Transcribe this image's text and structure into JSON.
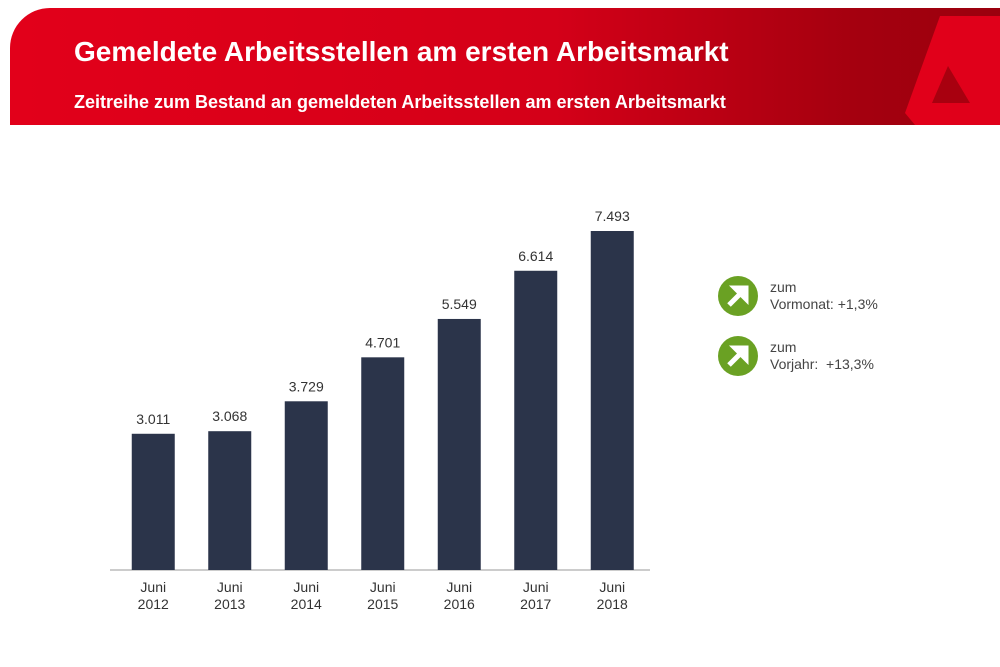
{
  "header": {
    "title": "Gemeldete Arbeitsstellen am ersten Arbeitsmarkt",
    "subtitle": "Zeitreihe zum Bestand an gemeldeten Arbeitsstellen am ersten Arbeitsmarkt",
    "logo": "Bundesagentur für Arbeit A-logo",
    "colors": {
      "brand": "#e2001a",
      "dark": "#9a000e"
    }
  },
  "chart_data": {
    "type": "bar",
    "categories": [
      "Juni 2012",
      "Juni 2013",
      "Juni 2014",
      "Juni 2015",
      "Juni 2016",
      "Juni 2017",
      "Juni 2018"
    ],
    "category_lines": [
      [
        "Juni",
        "2012"
      ],
      [
        "Juni",
        "2013"
      ],
      [
        "Juni",
        "2014"
      ],
      [
        "Juni",
        "2015"
      ],
      [
        "Juni",
        "2016"
      ],
      [
        "Juni",
        "2017"
      ],
      [
        "Juni",
        "2018"
      ]
    ],
    "values": [
      3011,
      3068,
      3729,
      4701,
      5549,
      6614,
      7493
    ],
    "data_labels": [
      "3.011",
      "3.068",
      "3.729",
      "4.701",
      "5.549",
      "6.614",
      "7.493"
    ],
    "ylim": [
      0,
      7493
    ],
    "grid": false,
    "bar_color": "#2b344a"
  },
  "indicators": [
    {
      "icon": "arrow-up-right-icon",
      "line1": "zum",
      "label": "Vormonat:",
      "value": "+1,3%",
      "color": "#6aa123"
    },
    {
      "icon": "arrow-up-right-icon",
      "line1": "zum",
      "label": "Vorjahr:",
      "value": "+13,3%",
      "color": "#6aa123"
    }
  ]
}
